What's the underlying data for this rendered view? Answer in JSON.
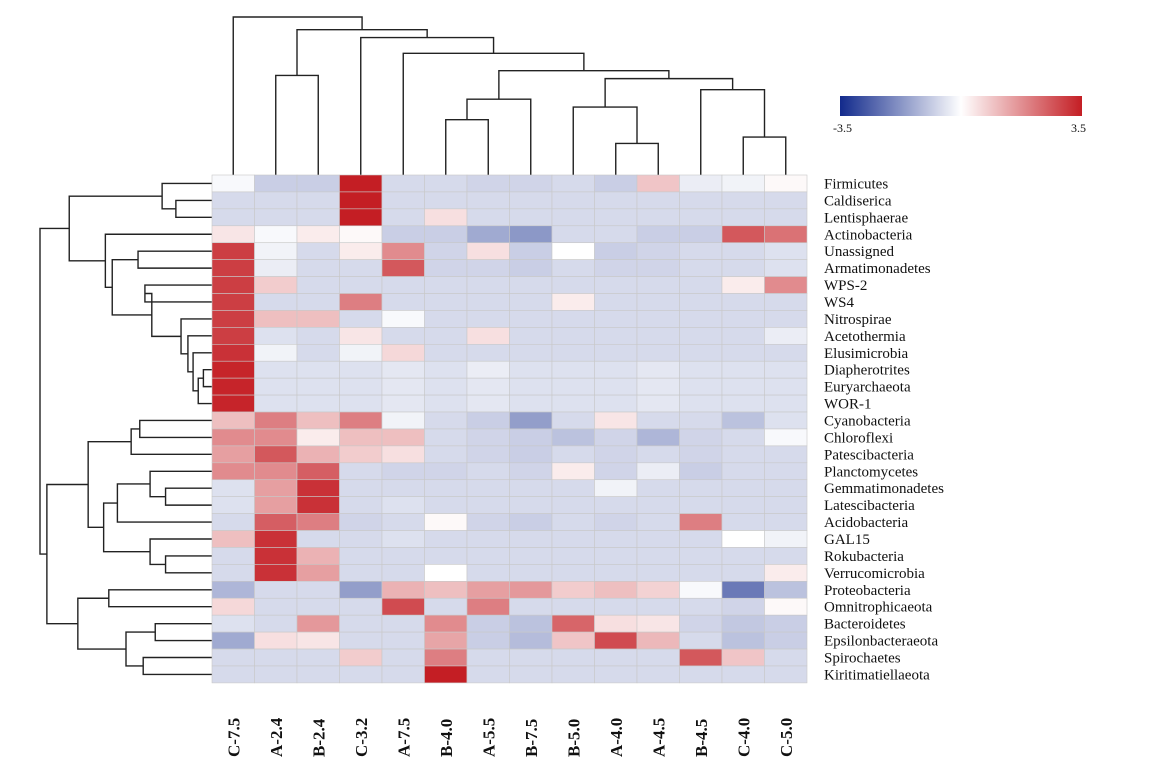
{
  "chart_data": {
    "type": "heatmap",
    "rows": [
      "Firmicutes",
      "Caldiserica",
      "Lentisphaerae",
      "Actinobacteria",
      "Unassigned",
      "Armatimonadetes",
      "WPS-2",
      "WS4",
      "Nitrospirae",
      "Acetothermia",
      "Elusimicrobia",
      "Diapherotrites",
      "Euryarchaeota",
      "WOR-1",
      "Cyanobacteria",
      "Chloroflexi",
      "Patescibacteria",
      "Planctomycetes",
      "Gemmatimonadetes",
      "Latescibacteria",
      "Acidobacteria",
      "GAL15",
      "Rokubacteria",
      "Verrucomicrobia",
      "Proteobacteria",
      "Omnitrophicaeota",
      "Bacteroidetes",
      "Epsilonbacteraeota",
      "Spirochaetes",
      "Kiritimatiellaeota"
    ],
    "columns": [
      "C-7.5",
      "A-2.4",
      "B-2.4",
      "C-3.2",
      "A-7.5",
      "B-4.0",
      "A-5.5",
      "B-7.5",
      "B-5.0",
      "A-4.0",
      "A-4.5",
      "B-4.5",
      "C-4.0",
      "C-5.0"
    ],
    "values": [
      [
        -0.1,
        -0.8,
        -0.8,
        3.5,
        -0.6,
        -0.6,
        -0.7,
        -0.7,
        -0.6,
        -0.8,
        0.9,
        -0.3,
        -0.2,
        0.1
      ],
      [
        -0.6,
        -0.6,
        -0.6,
        3.5,
        -0.6,
        -0.6,
        -0.6,
        -0.6,
        -0.6,
        -0.6,
        -0.6,
        -0.6,
        -0.6,
        -0.6
      ],
      [
        -0.6,
        -0.6,
        -0.6,
        3.5,
        -0.6,
        0.5,
        -0.6,
        -0.6,
        -0.6,
        -0.6,
        -0.6,
        -0.6,
        -0.6,
        -0.6
      ],
      [
        0.4,
        -0.1,
        0.3,
        0.1,
        -0.8,
        -0.8,
        -1.4,
        -1.7,
        -0.6,
        -0.6,
        -0.8,
        -0.8,
        2.6,
        2.2
      ],
      [
        3.0,
        -0.2,
        -0.6,
        0.3,
        1.8,
        -0.7,
        0.5,
        -0.8,
        0.0,
        -0.8,
        -0.7,
        -0.6,
        -0.6,
        -0.5
      ],
      [
        3.0,
        -0.3,
        -0.6,
        -0.6,
        2.6,
        -0.7,
        -0.7,
        -0.8,
        -0.6,
        -0.7,
        -0.7,
        -0.6,
        -0.6,
        -0.5
      ],
      [
        3.0,
        0.8,
        -0.6,
        -0.6,
        -0.6,
        -0.6,
        -0.6,
        -0.6,
        -0.6,
        -0.6,
        -0.6,
        -0.6,
        0.3,
        1.8
      ],
      [
        3.0,
        -0.6,
        -0.6,
        2.0,
        -0.6,
        -0.6,
        -0.6,
        -0.6,
        0.3,
        -0.6,
        -0.6,
        -0.6,
        -0.6,
        -0.6
      ],
      [
        3.0,
        1.0,
        1.0,
        -0.6,
        -0.1,
        -0.6,
        -0.6,
        -0.6,
        -0.6,
        -0.6,
        -0.6,
        -0.6,
        -0.6,
        -0.6
      ],
      [
        3.0,
        -0.5,
        -0.6,
        0.4,
        -0.6,
        -0.6,
        0.5,
        -0.6,
        -0.6,
        -0.6,
        -0.6,
        -0.6,
        -0.6,
        -0.3
      ],
      [
        3.2,
        -0.2,
        -0.6,
        -0.2,
        0.6,
        -0.6,
        -0.6,
        -0.6,
        -0.6,
        -0.6,
        -0.6,
        -0.6,
        -0.6,
        -0.6
      ],
      [
        3.4,
        -0.5,
        -0.5,
        -0.5,
        -0.4,
        -0.5,
        -0.3,
        -0.5,
        -0.5,
        -0.5,
        -0.4,
        -0.5,
        -0.5,
        -0.5
      ],
      [
        3.4,
        -0.5,
        -0.5,
        -0.5,
        -0.4,
        -0.5,
        -0.4,
        -0.5,
        -0.5,
        -0.5,
        -0.4,
        -0.5,
        -0.5,
        -0.5
      ],
      [
        3.4,
        -0.5,
        -0.5,
        -0.5,
        -0.4,
        -0.5,
        -0.4,
        -0.5,
        -0.5,
        -0.5,
        -0.4,
        -0.5,
        -0.5,
        -0.5
      ],
      [
        1.0,
        2.0,
        1.0,
        2.0,
        -0.2,
        -0.6,
        -0.8,
        -1.6,
        -0.6,
        0.4,
        -0.6,
        -0.6,
        -1.0,
        -0.5
      ],
      [
        1.8,
        1.8,
        0.3,
        1.0,
        1.0,
        -0.6,
        -0.7,
        -0.8,
        -1.0,
        -0.7,
        -1.2,
        -0.7,
        -0.6,
        -0.1
      ],
      [
        1.5,
        2.6,
        1.2,
        0.8,
        0.5,
        -0.6,
        -0.7,
        -0.8,
        -0.6,
        -0.7,
        -0.6,
        -0.7,
        -0.6,
        -0.6
      ],
      [
        1.8,
        1.8,
        2.5,
        -0.6,
        -0.7,
        -0.7,
        -0.6,
        -0.7,
        0.3,
        -0.7,
        -0.3,
        -0.8,
        -0.6,
        -0.6
      ],
      [
        -0.5,
        1.5,
        3.2,
        -0.6,
        -0.6,
        -0.6,
        -0.6,
        -0.6,
        -0.6,
        -0.2,
        -0.6,
        -0.6,
        -0.6,
        -0.6
      ],
      [
        -0.5,
        1.5,
        3.2,
        -0.6,
        -0.5,
        -0.6,
        -0.6,
        -0.6,
        -0.6,
        -0.6,
        -0.6,
        -0.6,
        -0.6,
        -0.6
      ],
      [
        -0.6,
        2.5,
        2.0,
        -0.7,
        -0.6,
        0.1,
        -0.7,
        -0.8,
        -0.6,
        -0.7,
        -0.6,
        2.0,
        -0.6,
        -0.6
      ],
      [
        1.0,
        3.2,
        -0.6,
        -0.6,
        -0.5,
        -0.6,
        -0.6,
        -0.6,
        -0.6,
        -0.6,
        -0.6,
        -0.6,
        0.0,
        -0.2
      ],
      [
        -0.6,
        3.2,
        1.2,
        -0.6,
        -0.6,
        -0.6,
        -0.6,
        -0.6,
        -0.6,
        -0.6,
        -0.6,
        -0.6,
        -0.6,
        -0.6
      ],
      [
        -0.6,
        3.2,
        1.5,
        -0.6,
        -0.6,
        0.0,
        -0.6,
        -0.6,
        -0.6,
        -0.6,
        -0.6,
        -0.6,
        -0.6,
        0.3
      ],
      [
        -1.2,
        -0.6,
        -0.6,
        -1.6,
        1.2,
        1.0,
        1.5,
        1.6,
        0.8,
        1.0,
        0.7,
        -0.1,
        -2.2,
        -1.0
      ],
      [
        0.6,
        -0.6,
        -0.6,
        -0.6,
        2.8,
        -0.6,
        2.0,
        -0.6,
        -0.6,
        -0.6,
        -0.6,
        -0.6,
        -0.7,
        0.1
      ],
      [
        -0.5,
        -0.6,
        1.6,
        -0.6,
        -0.6,
        1.8,
        -0.8,
        -1.0,
        2.4,
        0.5,
        0.4,
        -0.7,
        -0.9,
        -0.8
      ],
      [
        -1.4,
        0.5,
        0.4,
        -0.6,
        -0.6,
        1.4,
        -0.8,
        -1.1,
        0.9,
        2.8,
        1.1,
        -0.6,
        -1.0,
        -0.8
      ],
      [
        -0.6,
        -0.6,
        -0.6,
        0.8,
        -0.6,
        2.0,
        -0.6,
        -0.6,
        -0.6,
        -0.6,
        -0.6,
        2.6,
        0.9,
        -0.6
      ],
      [
        -0.6,
        -0.6,
        -0.6,
        -0.6,
        -0.6,
        3.5,
        -0.6,
        -0.6,
        -0.6,
        -0.6,
        -0.6,
        -0.6,
        -0.6,
        -0.6
      ]
    ],
    "colorscale": {
      "min": -3.5,
      "max": 3.5,
      "low_color": "#122a8c",
      "mid_color": "#ffffff",
      "high_color": "#c41e24"
    },
    "scale_labels": {
      "min": "-3.5",
      "max": "3.5"
    },
    "grid": true,
    "row_dendrogram": "left",
    "column_dendrogram": "top",
    "legend_placement": "top-right"
  }
}
